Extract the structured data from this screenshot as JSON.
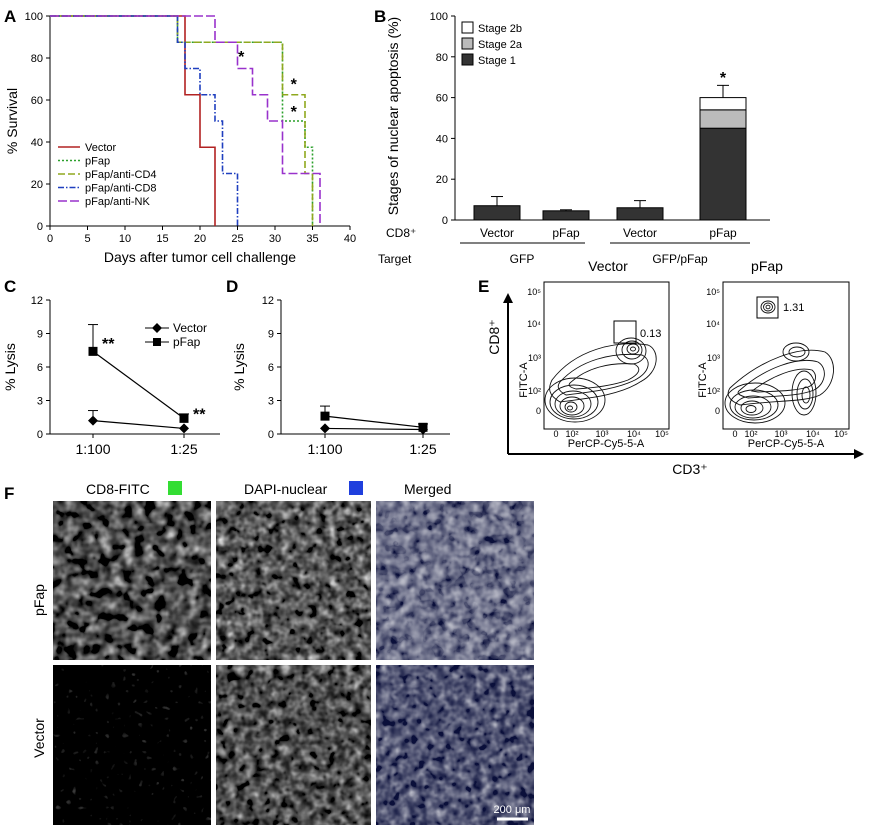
{
  "panels": {
    "A": {
      "letter": "A",
      "chart_data": {
        "type": "line",
        "step": true,
        "xlabel": "Days after tumor cell challenge",
        "ylabel": "% Survival",
        "xlim": [
          0,
          40
        ],
        "ylim": [
          0,
          100
        ],
        "xticks": [
          0,
          5,
          10,
          15,
          20,
          25,
          30,
          35,
          40
        ],
        "yticks": [
          0,
          20,
          40,
          60,
          80,
          100
        ],
        "legend_position": "bottom-left",
        "series": [
          {
            "name": "Vector",
            "color": "#b22222",
            "dash": "",
            "x": [
              0,
              18,
              20,
              22
            ],
            "y": [
              100,
              62.5,
              37.5,
              0
            ]
          },
          {
            "name": "pFap",
            "color": "#2ca02c",
            "dash": "2,2",
            "x": [
              0,
              17,
              31,
              34,
              35
            ],
            "y": [
              100,
              87.5,
              50,
              37.5,
              0
            ]
          },
          {
            "name": "pFap/anti-CD4",
            "color": "#8fa81e",
            "dash": "7,3",
            "x": [
              0,
              17,
              31,
              34,
              35
            ],
            "y": [
              100,
              87.5,
              62.5,
              25,
              0
            ]
          },
          {
            "name": "pFap/anti-CD8",
            "color": "#1f3fbf",
            "dash": "6,2,1.5,2",
            "x": [
              0,
              17,
              18,
              20,
              22,
              23,
              25
            ],
            "y": [
              100,
              87.5,
              75,
              62.5,
              50,
              25,
              0
            ]
          },
          {
            "name": "pFap/anti-NK",
            "color": "#9932cc",
            "dash": "9,3",
            "x": [
              0,
              22,
              25,
              27,
              29,
              31,
              36
            ],
            "y": [
              100,
              87.5,
              75,
              62.5,
              50,
              25,
              0
            ]
          }
        ],
        "annotations": [
          {
            "text": "*",
            "x": 25.5,
            "y": 78
          },
          {
            "text": "*",
            "x": 32.5,
            "y": 65
          },
          {
            "text": "*",
            "x": 32.5,
            "y": 52
          }
        ]
      }
    },
    "B": {
      "letter": "B",
      "chart_data": {
        "type": "bar",
        "stacked": true,
        "ylabel": "Stages of nuclear apoptosis (%)",
        "ylim": [
          0,
          100
        ],
        "yticks": [
          0,
          20,
          40,
          60,
          80,
          100
        ],
        "row_labels": [
          "CD8⁺",
          "Target"
        ],
        "categories": [
          "Vector",
          "pFap",
          "Vector",
          "pFap"
        ],
        "target_groups": [
          {
            "label": "GFP",
            "span": [
              0,
              1
            ]
          },
          {
            "label": "GFP/pFap",
            "span": [
              2,
              3
            ]
          }
        ],
        "legend_position": "top-left",
        "series": [
          {
            "name": "Stage 1",
            "color": "#333333",
            "values": [
              7,
              4.5,
              6,
              45
            ]
          },
          {
            "name": "Stage 2a",
            "color": "#bbbbbb",
            "values": [
              0,
              0,
              0,
              9
            ]
          },
          {
            "name": "Stage 2b",
            "color": "#ffffff",
            "values": [
              0,
              0,
              0,
              6
            ]
          }
        ],
        "errors": [
          4.5,
          0.5,
          3.5,
          6
        ],
        "annotations": [
          {
            "text": "*",
            "category": 3,
            "y": 70
          }
        ]
      }
    },
    "C": {
      "letter": "C",
      "chart_data": {
        "type": "line",
        "ylabel": "% Lysis",
        "categories": [
          "1:100",
          "1:25"
        ],
        "ylim": [
          0,
          12
        ],
        "yticks": [
          0,
          3,
          6,
          9,
          12
        ],
        "legend_position": "top-right",
        "series": [
          {
            "name": "Vector",
            "marker": "diamond",
            "values": [
              1.2,
              0.5
            ],
            "errors": [
              0.9,
              0
            ]
          },
          {
            "name": "pFap",
            "marker": "square",
            "values": [
              7.4,
              1.4
            ],
            "errors": [
              2.4,
              0.4
            ]
          }
        ],
        "annotations": [
          {
            "text": "**",
            "category": 0,
            "y": 7.8
          },
          {
            "text": "**",
            "category": 1,
            "y": 1.5
          }
        ]
      }
    },
    "D": {
      "letter": "D",
      "chart_data": {
        "type": "line",
        "ylabel": "% Lysis",
        "categories": [
          "1:100",
          "1:25"
        ],
        "ylim": [
          0,
          12
        ],
        "yticks": [
          0,
          3,
          6,
          9,
          12
        ],
        "series": [
          {
            "marker": "diamond",
            "values": [
              0.5,
              0.4
            ],
            "errors": [
              0,
              0
            ]
          },
          {
            "marker": "square",
            "values": [
              1.6,
              0.6
            ],
            "errors": [
              0.9,
              0.3
            ]
          }
        ]
      }
    },
    "E": {
      "letter": "E",
      "y_axis_label": "CD8⁺",
      "x_axis_label": "CD3⁺",
      "plots": [
        {
          "title": "Vector",
          "gate_value": "0.13",
          "xlabel": "PerCP-Cy5-5-A",
          "ylabel": "FITC-A"
        },
        {
          "title": "pFap",
          "gate_value": "1.31",
          "xlabel": "PerCP-Cy5-5-A",
          "ylabel": "FITC-A"
        }
      ],
      "y_ticks": [
        "10⁵",
        "10⁴",
        "10³",
        "10²",
        "0"
      ],
      "x_ticks": [
        "0",
        "10²",
        "10³",
        "10⁴",
        "10⁵"
      ]
    },
    "F": {
      "letter": "F",
      "columns": [
        {
          "label": "CD8-FITC",
          "swatch": "#33dd33"
        },
        {
          "label": "DAPI-nuclear",
          "swatch": "#1f3fdd"
        },
        {
          "label": "Merged"
        }
      ],
      "rows": [
        "pFap",
        "Vector"
      ],
      "scale_bar": "200 μm"
    }
  }
}
